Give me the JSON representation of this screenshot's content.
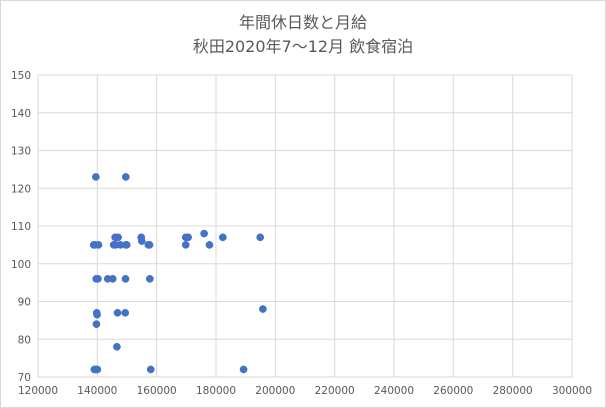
{
  "chart_data": {
    "type": "scatter",
    "title": "年間休日数と月給",
    "subtitle": "秋田2020年7～12月  飲食宿泊",
    "xlim": [
      120000,
      300000
    ],
    "ylim": [
      70,
      150
    ],
    "x_ticks": [
      "120000",
      "140000",
      "160000",
      "180000",
      "200000",
      "220000",
      "240000",
      "260000",
      "280000",
      "300000"
    ],
    "y_ticks": [
      "70",
      "80",
      "90",
      "100",
      "110",
      "120",
      "130",
      "140",
      "150"
    ],
    "grid": "horizontal and vertical",
    "legend": "none",
    "marker_color": "#4472c4",
    "points": [
      {
        "x": 138800,
        "y": 105
      },
      {
        "x": 139200,
        "y": 105
      },
      {
        "x": 140400,
        "y": 105
      },
      {
        "x": 139500,
        "y": 123
      },
      {
        "x": 139600,
        "y": 96
      },
      {
        "x": 140200,
        "y": 96
      },
      {
        "x": 139800,
        "y": 87
      },
      {
        "x": 139900,
        "y": 86.5
      },
      {
        "x": 139700,
        "y": 84
      },
      {
        "x": 139000,
        "y": 72
      },
      {
        "x": 139500,
        "y": 72
      },
      {
        "x": 140000,
        "y": 72
      },
      {
        "x": 143500,
        "y": 96
      },
      {
        "x": 145200,
        "y": 96
      },
      {
        "x": 145500,
        "y": 105
      },
      {
        "x": 146200,
        "y": 105
      },
      {
        "x": 147800,
        "y": 105
      },
      {
        "x": 149600,
        "y": 105
      },
      {
        "x": 149900,
        "y": 105
      },
      {
        "x": 146000,
        "y": 107
      },
      {
        "x": 147000,
        "y": 107
      },
      {
        "x": 146800,
        "y": 87
      },
      {
        "x": 146600,
        "y": 78
      },
      {
        "x": 149600,
        "y": 123
      },
      {
        "x": 149500,
        "y": 96
      },
      {
        "x": 149400,
        "y": 87
      },
      {
        "x": 154800,
        "y": 107
      },
      {
        "x": 155000,
        "y": 106
      },
      {
        "x": 157200,
        "y": 105
      },
      {
        "x": 157600,
        "y": 105
      },
      {
        "x": 157700,
        "y": 96
      },
      {
        "x": 158000,
        "y": 72
      },
      {
        "x": 169800,
        "y": 107
      },
      {
        "x": 170600,
        "y": 107
      },
      {
        "x": 169800,
        "y": 105
      },
      {
        "x": 176000,
        "y": 108
      },
      {
        "x": 177800,
        "y": 105
      },
      {
        "x": 182300,
        "y": 107
      },
      {
        "x": 189300,
        "y": 72
      },
      {
        "x": 194900,
        "y": 107
      },
      {
        "x": 195800,
        "y": 88
      }
    ]
  }
}
